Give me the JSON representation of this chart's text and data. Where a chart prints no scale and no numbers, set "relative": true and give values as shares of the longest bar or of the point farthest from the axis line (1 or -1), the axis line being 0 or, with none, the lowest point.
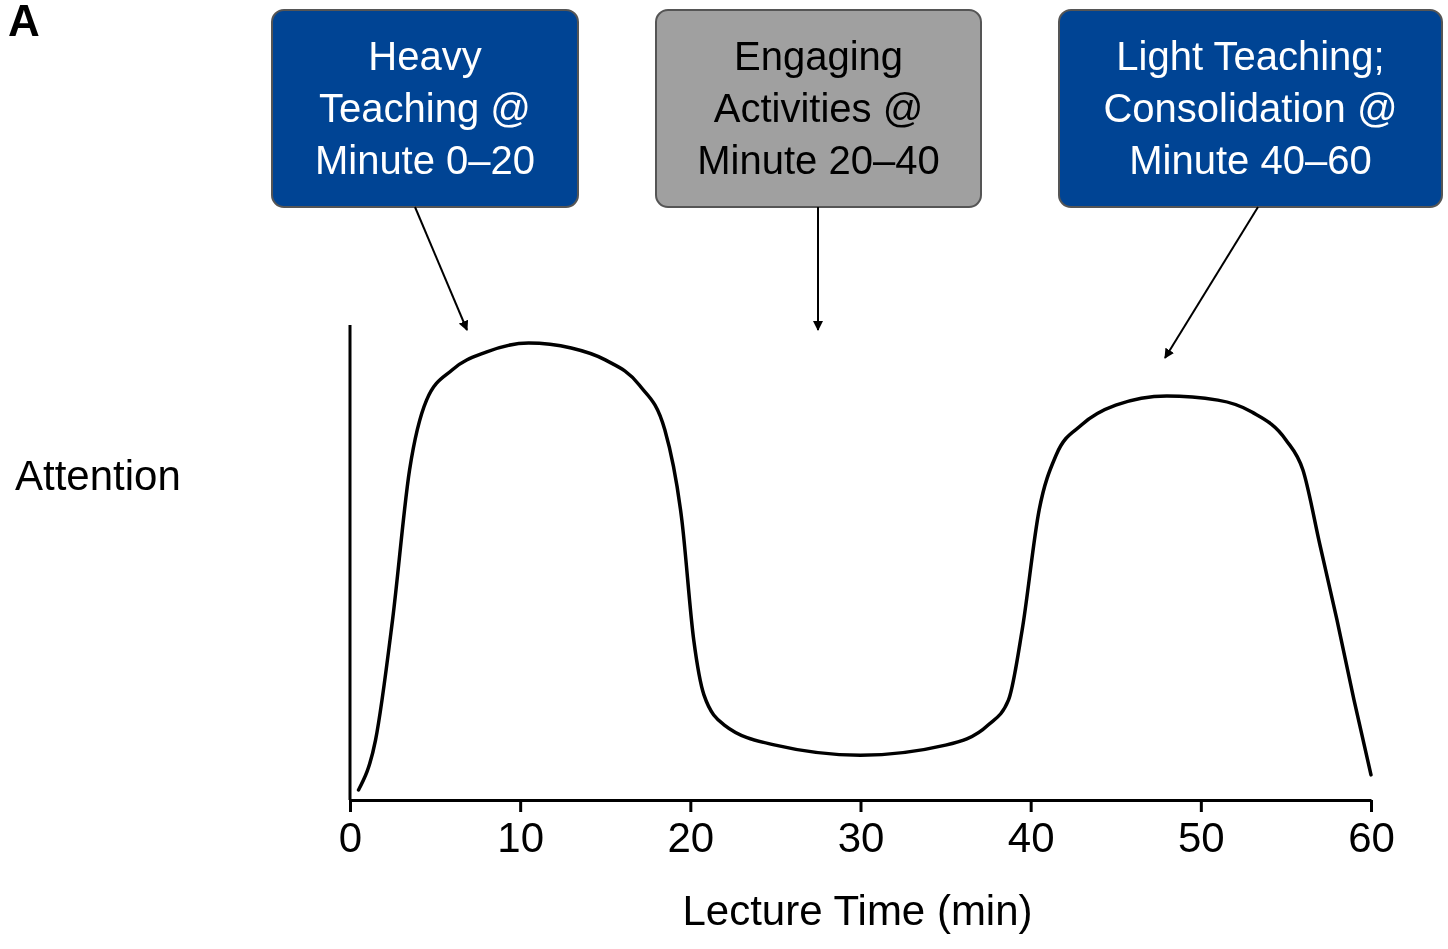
{
  "chart_data": {
    "type": "line",
    "relative": true,
    "xlabel": "Lecture Time (min)",
    "ylabel": "Attention",
    "xlim": [
      0,
      60
    ],
    "xticks": [
      0,
      10,
      20,
      30,
      40,
      50,
      60
    ],
    "grid": false,
    "marker": "none",
    "line_style": "solid",
    "x": [
      0.5,
      1.5,
      2.5,
      3.5,
      4.5,
      6,
      8,
      10.5,
      13,
      15,
      17,
      18.5,
      19.5,
      20.2,
      20.8,
      22,
      25,
      30,
      35,
      37.5,
      38.7,
      39.5,
      40.5,
      41.5,
      43,
      45,
      48,
      51,
      53,
      55,
      56,
      57,
      58,
      59,
      60
    ],
    "series": [
      {
        "color": "#000000",
        "values": [
          0.022,
          0.131,
          0.394,
          0.722,
          0.875,
          0.941,
          0.98,
          1.0,
          0.989,
          0.963,
          0.908,
          0.81,
          0.613,
          0.35,
          0.23,
          0.164,
          0.12,
          0.098,
          0.12,
          0.164,
          0.219,
          0.372,
          0.635,
          0.755,
          0.821,
          0.864,
          0.884,
          0.875,
          0.849,
          0.788,
          0.722,
          0.558,
          0.394,
          0.219,
          0.055
        ]
      }
    ],
    "annotations": [
      "A",
      "Heavy Teaching @ Minute 0–20",
      "Engaging Activities @ Minute 20–40",
      "Light Teaching; Consolidation @ Minute 40–60"
    ]
  }
}
